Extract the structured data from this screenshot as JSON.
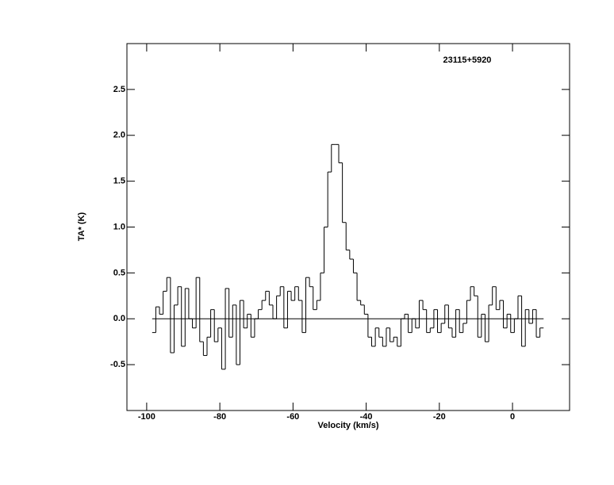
{
  "chart_data": {
    "type": "step",
    "annotation": "23115+5920",
    "xlabel": "Velocity (km/s)",
    "ylabel": "TA* (K)",
    "x": [
      -98,
      -97,
      -96,
      -95,
      -94,
      -93,
      -92,
      -91,
      -90,
      -89,
      -88,
      -87,
      -86,
      -85,
      -84,
      -83,
      -82,
      -81,
      -80,
      -79,
      -78,
      -77,
      -76,
      -75,
      -74,
      -73,
      -72,
      -71,
      -70,
      -69,
      -68,
      -67,
      -66,
      -65,
      -64,
      -63,
      -62,
      -61,
      -60,
      -59,
      -58,
      -57,
      -56,
      -55,
      -54,
      -53,
      -52,
      -51,
      -50,
      -49,
      -48,
      -47,
      -46,
      -45,
      -44,
      -43,
      -42,
      -41,
      -40,
      -39,
      -38,
      -37,
      -36,
      -35,
      -34,
      -33,
      -32,
      -31,
      -30,
      -29,
      -28,
      -27,
      -26,
      -25,
      -24,
      -23,
      -22,
      -21,
      -20,
      -19,
      -18,
      -17,
      -16,
      -15,
      -14,
      -13,
      -12,
      -11,
      -10,
      -9,
      -8,
      -7,
      -6,
      -5,
      -4,
      -3,
      -2,
      -1,
      0,
      1,
      2,
      3,
      4,
      5,
      6,
      7,
      8
    ],
    "values": [
      -0.15,
      0.13,
      0.05,
      0.3,
      0.45,
      -0.37,
      0.15,
      0.35,
      -0.3,
      0.33,
      0.0,
      -0.1,
      0.45,
      -0.25,
      -0.4,
      -0.2,
      0.1,
      -0.25,
      -0.1,
      -0.55,
      0.33,
      -0.2,
      0.15,
      -0.5,
      0.2,
      -0.1,
      0.05,
      -0.2,
      0.0,
      0.1,
      0.2,
      0.3,
      0.15,
      0.0,
      0.25,
      0.35,
      -0.1,
      0.3,
      0.2,
      0.35,
      0.2,
      -0.15,
      0.45,
      0.35,
      0.1,
      0.2,
      0.5,
      1.0,
      1.6,
      1.9,
      1.9,
      1.7,
      1.05,
      0.75,
      0.65,
      0.5,
      0.2,
      0.15,
      0.05,
      -0.2,
      -0.3,
      -0.1,
      -0.2,
      -0.3,
      -0.1,
      -0.25,
      -0.2,
      -0.3,
      0.0,
      0.05,
      -0.15,
      0.0,
      -0.1,
      0.2,
      0.1,
      -0.15,
      -0.1,
      0.1,
      -0.15,
      -0.05,
      0.15,
      -0.1,
      -0.2,
      0.1,
      -0.15,
      -0.05,
      0.2,
      0.35,
      0.25,
      -0.2,
      0.05,
      -0.25,
      0.15,
      0.35,
      0.1,
      0.2,
      -0.1,
      0.05,
      -0.15,
      0.0,
      0.25,
      -0.3,
      0.1,
      -0.05,
      0.1,
      -0.2,
      -0.1
    ],
    "color": "#000000",
    "hline": 0,
    "xlim": [
      -105.4,
      15.6
    ],
    "ylim": [
      -1.0,
      3.0
    ],
    "xticks": [
      -100,
      -80,
      -60,
      -40,
      -20,
      0
    ],
    "yticks": [
      -0.5,
      {
        "value": 0,
        "label": "0.0"
      },
      0.5,
      {
        "value": 1,
        "label": "1.0"
      },
      1.5,
      {
        "value": 2,
        "label": "2.0"
      },
      2.5
    ]
  }
}
